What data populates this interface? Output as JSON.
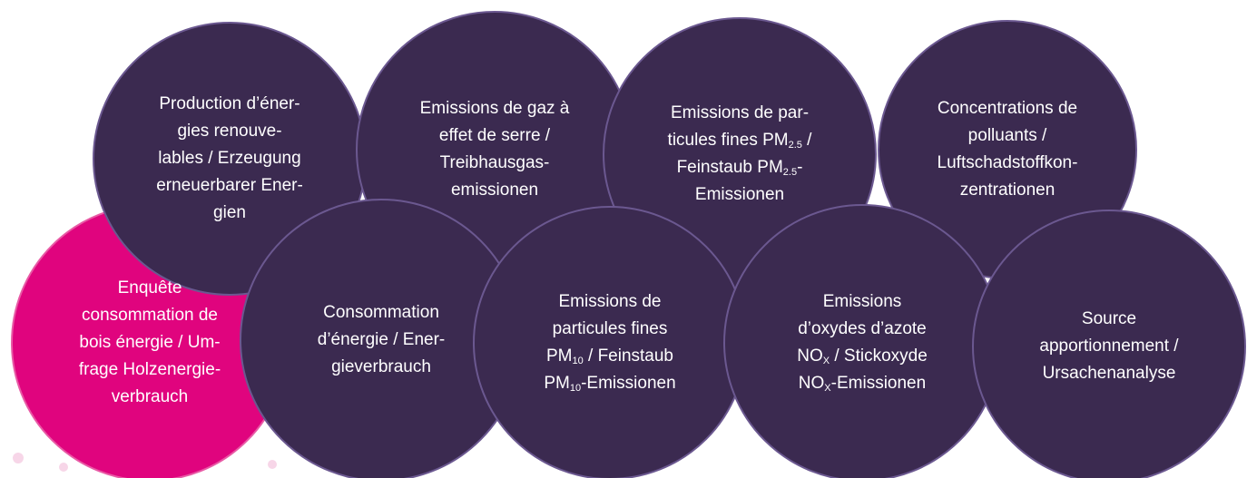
{
  "nodes": [
    {
      "lines": [
        [
          "Enquête"
        ],
        [
          "consommation de"
        ],
        [
          "bois énergie / Um-"
        ],
        [
          "frage Holzenergie-"
        ],
        [
          "verbrauch"
        ]
      ]
    },
    {
      "lines": [
        [
          "Production d’éner-"
        ],
        [
          "gies  renouve-"
        ],
        [
          "lables / Erzeugung"
        ],
        [
          "erneuerbarer Ener-"
        ],
        [
          "gien"
        ]
      ]
    },
    {
      "lines": [
        [
          "Emissions de gaz à"
        ],
        [
          "effet de serre /"
        ],
        [
          "Treibhausgas-"
        ],
        [
          "emissionen"
        ]
      ]
    },
    {
      "lines": [
        [
          "Emissions  de par-"
        ],
        [
          "ticules fines PM",
          "2.5",
          " /"
        ],
        [
          "Feinstaub PM",
          "2.5",
          "-"
        ],
        [
          "Emissionen"
        ]
      ]
    },
    {
      "lines": [
        [
          "Concentrations de"
        ],
        [
          "polluants /"
        ],
        [
          "Luftschadstoffkon-"
        ],
        [
          "zentrationen"
        ]
      ]
    },
    {
      "lines": [
        [
          "Consommation"
        ],
        [
          "d’énergie / Ener-"
        ],
        [
          "gieverbrauch"
        ]
      ]
    },
    {
      "lines": [
        [
          "Emissions  de"
        ],
        [
          "particules fines"
        ],
        [
          "PM",
          "10",
          " / Feinstaub"
        ],
        [
          "PM",
          "10",
          "-Emissionen"
        ]
      ]
    },
    {
      "lines": [
        [
          "Emissions"
        ],
        [
          "d’oxydes d’azote"
        ],
        [
          "NO",
          "X",
          " / Stickoxyde"
        ],
        [
          "NO",
          "X",
          "-Emissionen"
        ]
      ]
    },
    {
      "lines": [
        [
          "Source"
        ],
        [
          "apportionnement /"
        ],
        [
          "Ursachenanalyse"
        ]
      ]
    }
  ]
}
